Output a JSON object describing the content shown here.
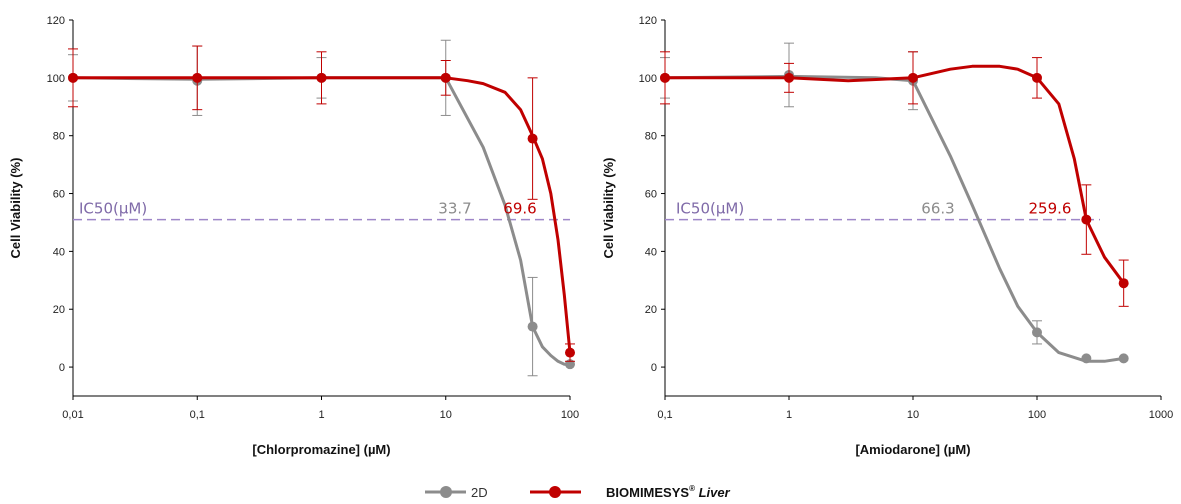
{
  "legend": {
    "items": [
      {
        "label": "2D",
        "color": "#8c8c8c"
      },
      {
        "label": "BIOMIMESYS",
        "sup": "®",
        "suffix": " Liver",
        "color": "#c00000"
      }
    ]
  },
  "colors": {
    "gray": "#8c8c8c",
    "red": "#c00000",
    "ic50_line": "#9e86c8",
    "ic50_text": "#7f6aa8"
  },
  "chart_data": [
    {
      "type": "line",
      "title": "",
      "xlabel": "[Chlorpromazine] (µM)",
      "ylabel": "Cell Viability (%)",
      "xscale": "log",
      "xlim": [
        0.01,
        100
      ],
      "ylim": [
        -10,
        120
      ],
      "xticks": [
        0.01,
        0.1,
        1,
        10,
        100
      ],
      "xtick_labels": [
        "0,01",
        "0,1",
        "1",
        "10",
        "100"
      ],
      "yticks": [
        0,
        20,
        40,
        60,
        80,
        100,
        120
      ],
      "ic50_label": "IC50(µM)",
      "ic50_level": 51,
      "series": [
        {
          "name": "2D",
          "color": "#8c8c8c",
          "x": [
            0.01,
            0.1,
            1,
            10,
            50,
            100
          ],
          "y": [
            100,
            99,
            100,
            100,
            14,
            1
          ],
          "err": [
            8,
            12,
            7,
            13,
            17,
            0
          ],
          "ic50": "33.7",
          "curve_x": [
            0.01,
            0.1,
            1,
            10,
            20,
            30,
            40,
            50,
            60,
            70,
            80,
            90,
            100
          ],
          "curve_y": [
            100,
            99.5,
            100,
            100,
            76,
            56,
            37,
            14,
            7,
            4,
            2,
            1,
            1
          ]
        },
        {
          "name": "BIOMIMESYS® Liver",
          "color": "#c00000",
          "x": [
            0.01,
            0.1,
            1,
            10,
            50,
            100
          ],
          "y": [
            100,
            100,
            100,
            100,
            79,
            5
          ],
          "err": [
            10,
            11,
            9,
            6,
            21,
            3
          ],
          "ic50": "69.6",
          "curve_x": [
            0.01,
            0.1,
            1,
            10,
            15,
            20,
            30,
            40,
            50,
            60,
            70,
            80,
            90,
            100
          ],
          "curve_y": [
            100,
            100,
            100,
            100,
            99,
            98,
            95,
            89,
            80,
            72,
            60,
            44,
            25,
            5
          ]
        }
      ]
    },
    {
      "type": "line",
      "title": "",
      "xlabel": "[Amiodarone] (µM)",
      "ylabel": "Cell Viability (%)",
      "xscale": "log",
      "xlim": [
        0.1,
        1000
      ],
      "ylim": [
        -10,
        120
      ],
      "xticks": [
        0.1,
        1,
        10,
        100,
        1000
      ],
      "xtick_labels": [
        "0,1",
        "1",
        "10",
        "100",
        "1000"
      ],
      "yticks": [
        0,
        20,
        40,
        60,
        80,
        100,
        120
      ],
      "ic50_label": "IC50(µM)",
      "ic50_level": 51,
      "series": [
        {
          "name": "2D",
          "color": "#8c8c8c",
          "x": [
            0.1,
            1,
            10,
            100,
            250,
            500
          ],
          "y": [
            100,
            101,
            99,
            12,
            3,
            3
          ],
          "err": [
            7,
            11,
            10,
            4,
            0,
            0
          ],
          "ic50": "66.3",
          "curve_x": [
            0.1,
            1,
            5,
            10,
            20,
            30,
            50,
            70,
            100,
            150,
            250,
            350,
            500
          ],
          "curve_y": [
            100,
            100.5,
            100,
            99,
            73,
            56,
            34,
            21,
            12,
            5,
            2,
            2,
            3
          ]
        },
        {
          "name": "BIOMIMESYS® Liver",
          "color": "#c00000",
          "x": [
            0.1,
            1,
            10,
            100,
            250,
            500
          ],
          "y": [
            100,
            100,
            100,
            100,
            51,
            29
          ],
          "err": [
            9,
            5,
            9,
            7,
            12,
            8
          ],
          "ic50": "259.6",
          "curve_x": [
            0.1,
            1,
            3,
            10,
            20,
            30,
            50,
            70,
            100,
            150,
            200,
            250,
            350,
            500
          ],
          "curve_y": [
            100,
            100,
            99,
            100,
            103,
            104,
            104,
            103,
            100,
            91,
            72,
            51,
            38,
            29
          ]
        }
      ]
    }
  ]
}
